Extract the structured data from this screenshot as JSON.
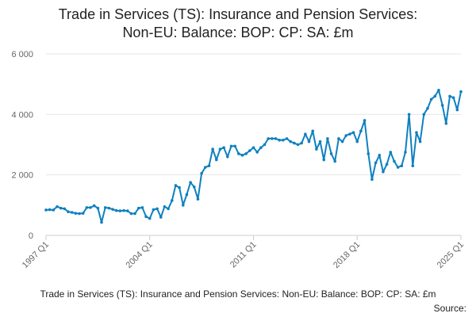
{
  "chart_data": {
    "type": "line",
    "title": "Trade in Services (TS): Insurance and Pension Services:",
    "subtitle": "Non-EU: Balance: BOP: CP: SA: £m",
    "footnote": "Trade in Services (TS): Insurance and Pension Services: Non-EU: Balance: BOP: CP: SA: £m",
    "source": "Source:",
    "categories": [
      "1997 Q1",
      null,
      null,
      null,
      null,
      null,
      null,
      null,
      null,
      null,
      null,
      null,
      null,
      null,
      null,
      null,
      null,
      null,
      null,
      null,
      null,
      null,
      null,
      null,
      null,
      null,
      null,
      null,
      "2004 Q1",
      null,
      null,
      null,
      null,
      null,
      null,
      null,
      null,
      null,
      null,
      null,
      null,
      null,
      null,
      null,
      null,
      null,
      null,
      null,
      null,
      null,
      null,
      null,
      null,
      null,
      null,
      null,
      "2011 Q1",
      null,
      null,
      null,
      null,
      null,
      null,
      null,
      null,
      null,
      null,
      null,
      null,
      null,
      null,
      null,
      null,
      null,
      null,
      null,
      null,
      null,
      null,
      null,
      null,
      null,
      null,
      null,
      "2018 Q1",
      null,
      null,
      null,
      null,
      null,
      null,
      null,
      null,
      null,
      null,
      null,
      null,
      null,
      null,
      null,
      null,
      null,
      null,
      null,
      null,
      null,
      null,
      null,
      null,
      null,
      null,
      null,
      "2025 Q1"
    ],
    "series": [
      {
        "name": "Trade in Services (TS): Insurance and Pension Services: Non-EU: Balance: BOP: CP: SA: £m",
        "color": "#0f80c0",
        "values": [
          840,
          850,
          840,
          950,
          900,
          880,
          780,
          760,
          730,
          720,
          730,
          920,
          920,
          980,
          900,
          430,
          920,
          900,
          860,
          820,
          810,
          820,
          810,
          720,
          720,
          900,
          920,
          620,
          560,
          850,
          880,
          600,
          950,
          880,
          1150,
          1650,
          1580,
          1000,
          1350,
          1750,
          1600,
          1200,
          2050,
          2250,
          2300,
          2850,
          2500,
          2850,
          2900,
          2600,
          2950,
          2950,
          2700,
          2650,
          2700,
          2800,
          2900,
          2750,
          2900,
          3000,
          3200,
          3200,
          3200,
          3150,
          3150,
          3200,
          3100,
          3050,
          3000,
          3050,
          3350,
          3100,
          3450,
          2850,
          3100,
          2500,
          3200,
          2700,
          2450,
          3200,
          3100,
          3300,
          3350,
          3400,
          3100,
          3450,
          3800,
          2700,
          1850,
          2400,
          2650,
          2100,
          2350,
          2750,
          2450,
          2250,
          2300,
          2750,
          4000,
          2300,
          3400,
          3100,
          4000,
          4200,
          4500,
          4600,
          4800,
          4300,
          3700,
          4600,
          4550,
          4150,
          4750
        ]
      }
    ],
    "ylim": [
      0,
      6000
    ],
    "yticks": [
      {
        "value": 0,
        "label": "0"
      },
      {
        "value": 2000,
        "label": "2 000"
      },
      {
        "value": 4000,
        "label": "4 000"
      },
      {
        "value": 6000,
        "label": "6 000"
      }
    ],
    "grid": true
  }
}
